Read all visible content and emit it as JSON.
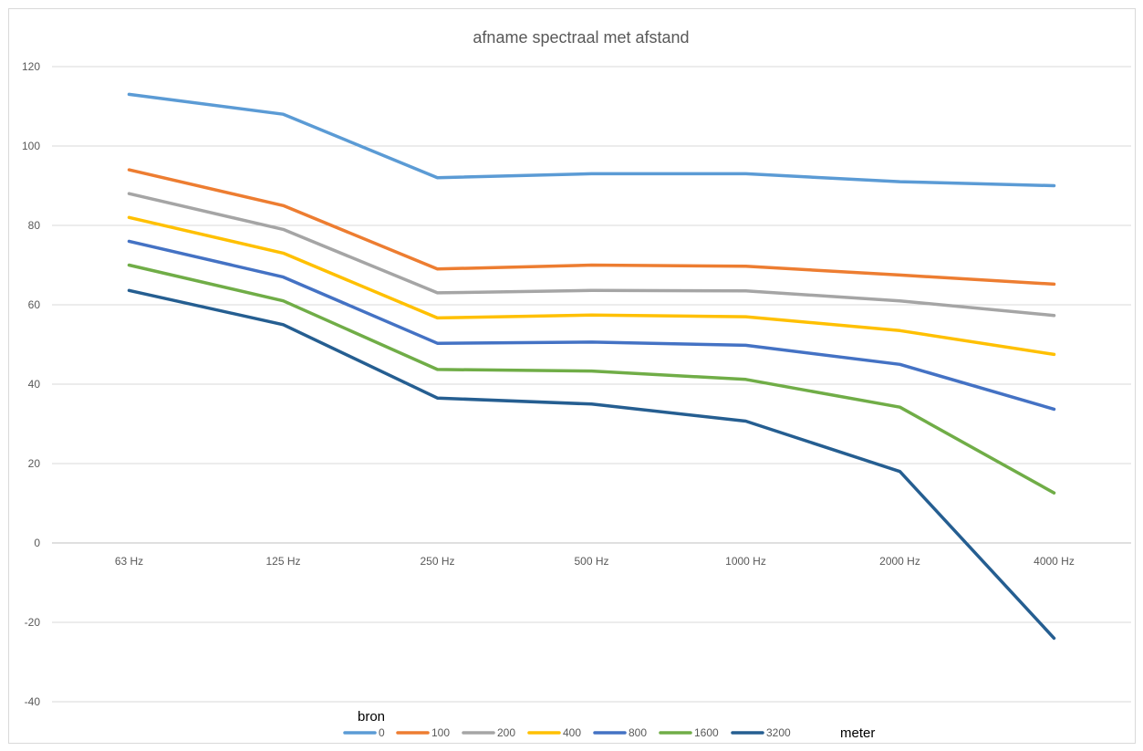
{
  "chart_data": {
    "type": "line",
    "title": "afname spectraal met afstand",
    "xlabel": "",
    "ylabel": "",
    "categories": [
      "63 Hz",
      "125 Hz",
      "250 Hz",
      "500 Hz",
      "1000 Hz",
      "2000 Hz",
      "4000 Hz"
    ],
    "ylim": [
      -40,
      120
    ],
    "yticks": [
      -40,
      -20,
      0,
      20,
      40,
      60,
      80,
      100,
      120
    ],
    "grid": true,
    "legend_position": "bottom",
    "legend_title": "bron",
    "legend_suffix": "meter",
    "series": [
      {
        "name": "0",
        "color": "#5b9bd5",
        "values": [
          113,
          108,
          92,
          93,
          93,
          91,
          90
        ]
      },
      {
        "name": "100",
        "color": "#ed7d31",
        "values": [
          94,
          85,
          69,
          70,
          69.7,
          67.5,
          65.2
        ]
      },
      {
        "name": "200",
        "color": "#a5a5a5",
        "values": [
          88,
          79,
          63,
          63.6,
          63.5,
          61,
          57.3
        ]
      },
      {
        "name": "400",
        "color": "#ffc000",
        "values": [
          82,
          73,
          56.7,
          57.4,
          57,
          53.5,
          47.5
        ]
      },
      {
        "name": "800",
        "color": "#4472c4",
        "values": [
          76,
          67,
          50.3,
          50.6,
          49.8,
          45,
          33.7
        ]
      },
      {
        "name": "1600",
        "color": "#70ad47",
        "values": [
          70,
          61,
          43.7,
          43.3,
          41.2,
          34.2,
          12.6
        ]
      },
      {
        "name": "3200",
        "color": "#255e91",
        "values": [
          63.6,
          55,
          36.5,
          35,
          30.7,
          18,
          -24
        ]
      }
    ]
  }
}
